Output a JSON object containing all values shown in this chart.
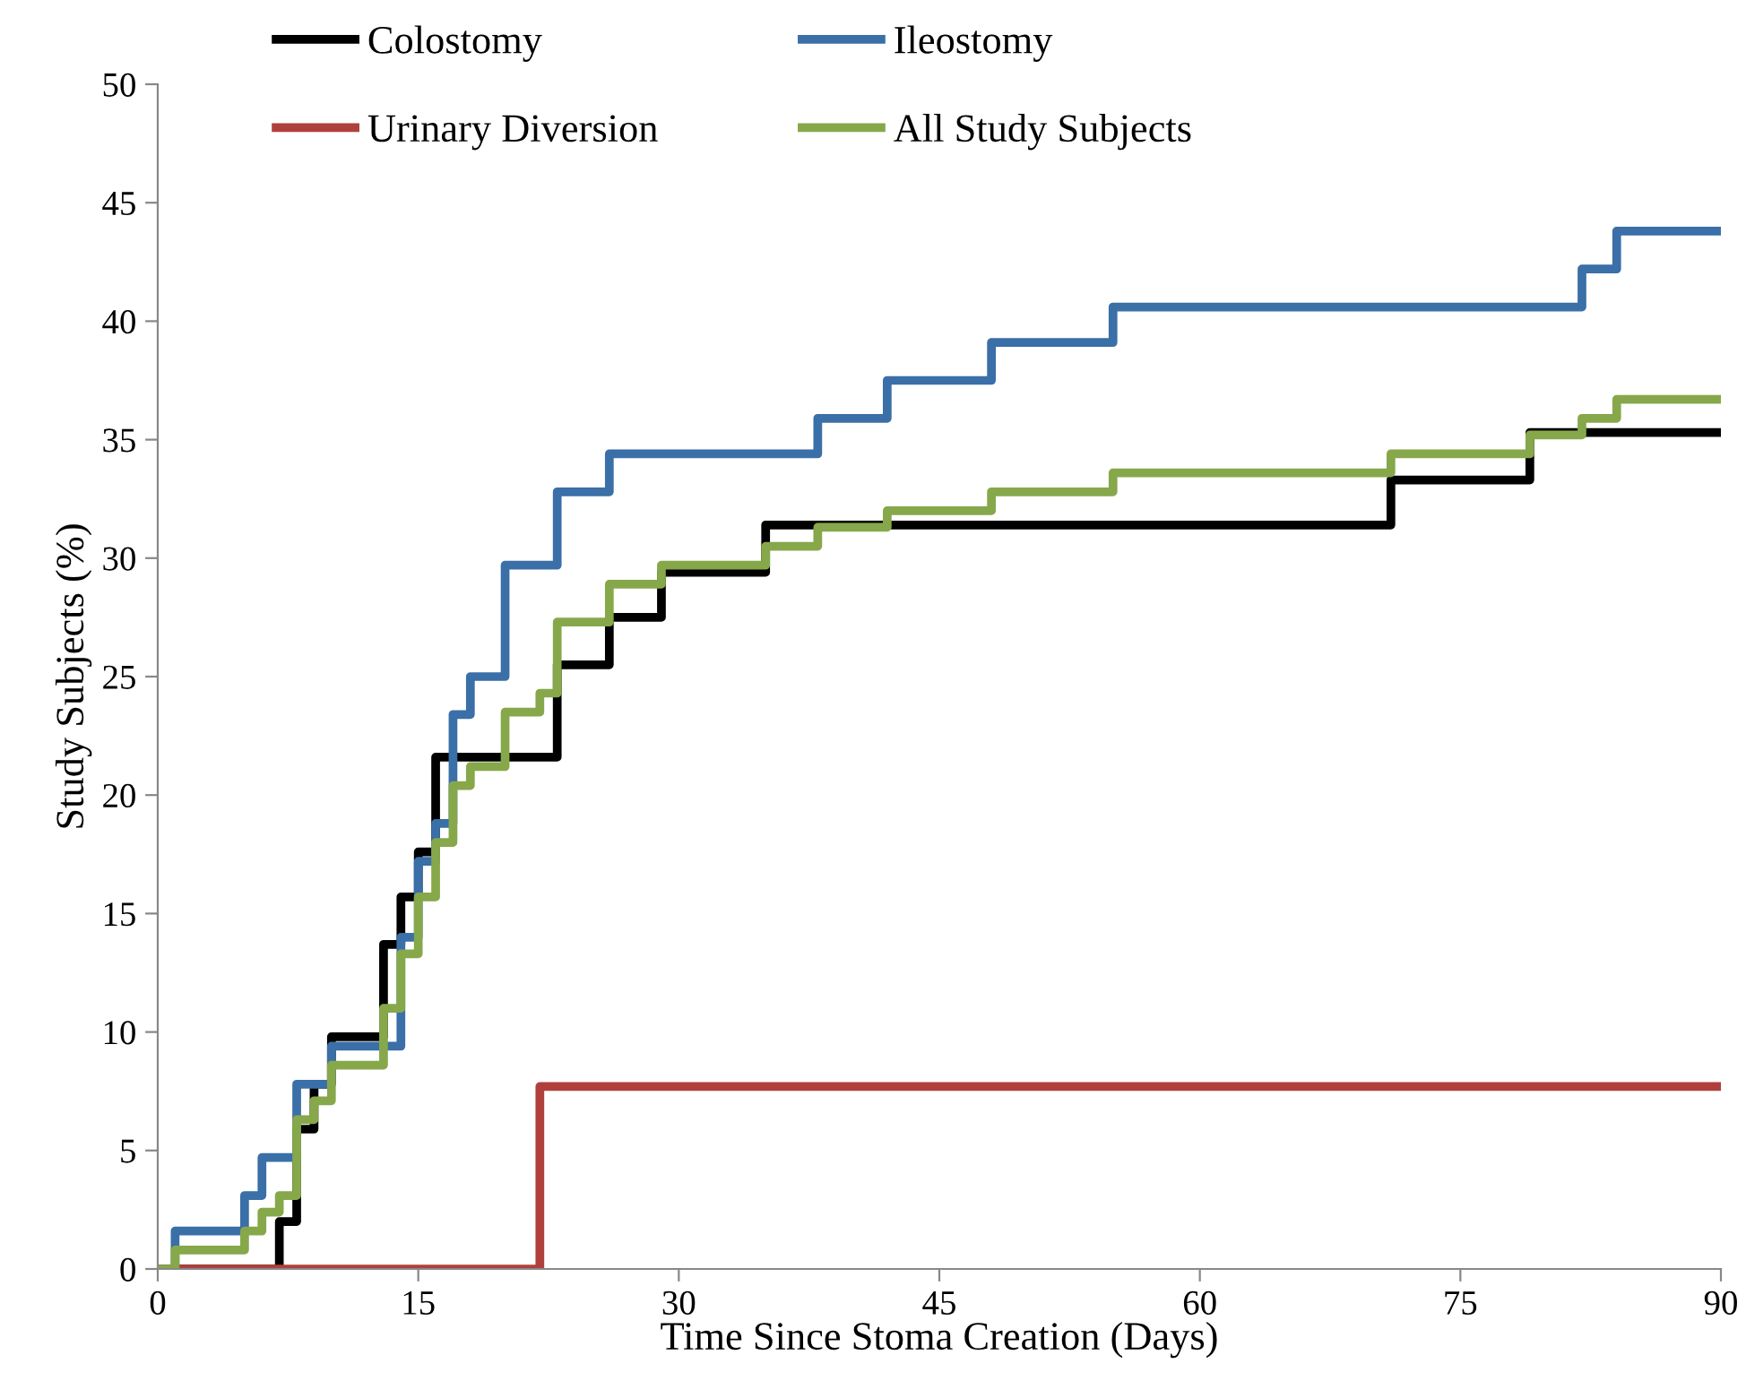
{
  "chart_data": {
    "type": "step",
    "xlabel": "Time Since Stoma Creation (Days)",
    "ylabel": "Study Subjects (%)",
    "xlim": [
      0,
      90
    ],
    "xticks": [
      0,
      15,
      30,
      45,
      60,
      75,
      90
    ],
    "ylim": [
      0,
      50
    ],
    "yticks": [
      0,
      5,
      10,
      15,
      20,
      25,
      30,
      35,
      40,
      45,
      50
    ],
    "grid": false,
    "legend": "top left",
    "marker": "none",
    "line_style": "solid",
    "series": [
      {
        "name": "Colostomy",
        "color": "#000000",
        "x": [
          0,
          7,
          8,
          9,
          10,
          13,
          14,
          15,
          16,
          23,
          26,
          29,
          35,
          71,
          79,
          90
        ],
        "values": [
          0,
          2,
          5.9,
          7.8,
          9.8,
          13.7,
          15.7,
          17.6,
          21.6,
          25.5,
          27.5,
          29.4,
          31.4,
          33.3,
          35.3,
          35.3
        ]
      },
      {
        "name": "Ileostomy",
        "color": "#3a6fa8",
        "x": [
          0,
          1,
          5,
          6,
          8,
          10,
          14,
          15,
          16,
          17,
          18,
          20,
          23,
          26,
          38,
          42,
          48,
          55,
          82,
          84,
          90
        ],
        "values": [
          0,
          1.6,
          3.1,
          4.7,
          7.8,
          9.4,
          14.0,
          17.2,
          18.8,
          23.4,
          25.0,
          29.7,
          32.8,
          34.4,
          35.9,
          37.5,
          39.1,
          40.6,
          42.2,
          43.8,
          43.8
        ]
      },
      {
        "name": "Urinary Diversion",
        "color": "#b0403c",
        "x": [
          0,
          22,
          90
        ],
        "values": [
          0,
          7.7,
          7.7
        ]
      },
      {
        "name": "All Study Subjects",
        "color": "#86a84a",
        "x": [
          0,
          1,
          5,
          6,
          7,
          8,
          9,
          10,
          13,
          14,
          15,
          16,
          17,
          18,
          20,
          22,
          23,
          26,
          29,
          35,
          38,
          42,
          48,
          55,
          71,
          79,
          82,
          84,
          90
        ],
        "values": [
          0,
          0.8,
          1.6,
          2.4,
          3.1,
          6.3,
          7.1,
          8.6,
          11.0,
          13.3,
          15.7,
          18.0,
          20.4,
          21.2,
          23.5,
          24.3,
          27.3,
          28.9,
          29.7,
          30.5,
          31.3,
          32.0,
          32.8,
          33.6,
          34.4,
          35.2,
          35.9,
          36.7,
          36.7
        ]
      }
    ]
  }
}
